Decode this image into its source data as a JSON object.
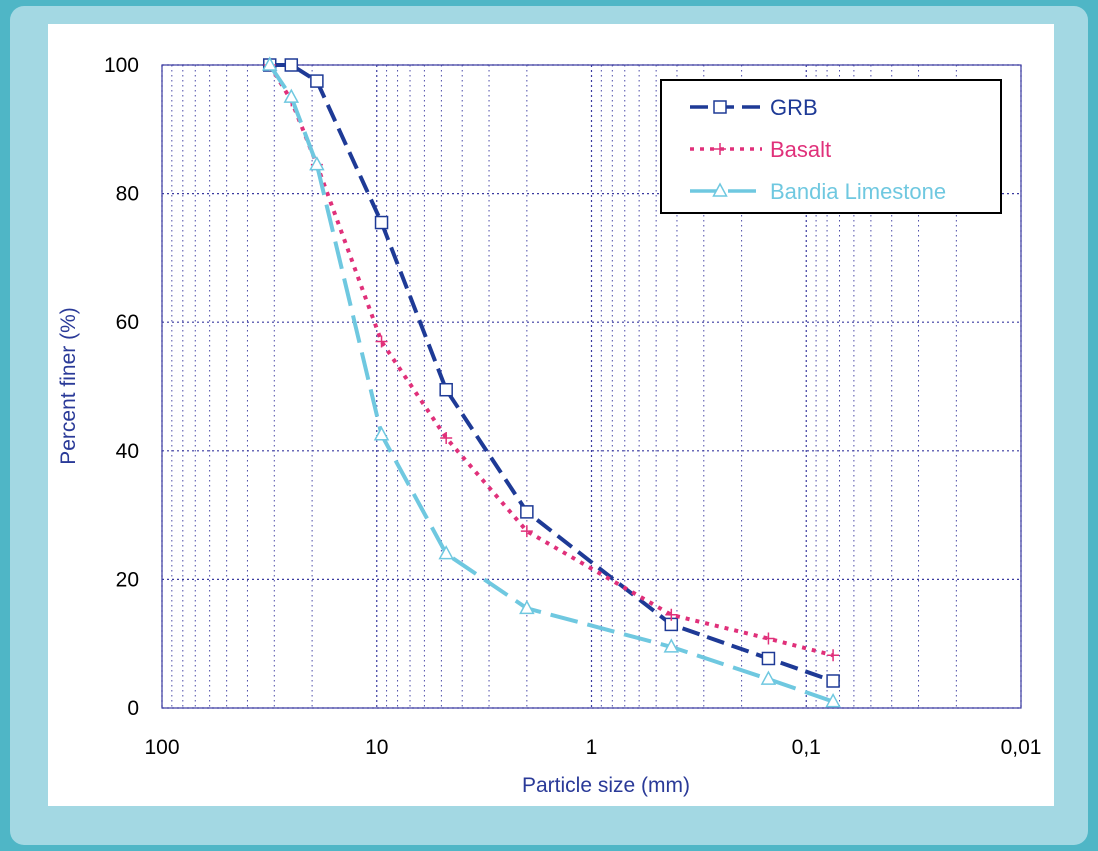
{
  "chart_data": {
    "type": "line",
    "title": "",
    "xlabel": "Particle size (mm)",
    "ylabel": "Percent finer (%)",
    "x_scale": "log",
    "x_reversed": true,
    "xlim": [
      100,
      0.01
    ],
    "ylim": [
      0,
      100
    ],
    "x_ticks": [
      {
        "value": 100,
        "label": "100"
      },
      {
        "value": 10,
        "label": "10"
      },
      {
        "value": 1,
        "label": "1"
      },
      {
        "value": 0.1,
        "label": "0,1"
      },
      {
        "value": 0.01,
        "label": "0,01"
      }
    ],
    "y_ticks": [
      {
        "value": 0,
        "label": "0"
      },
      {
        "value": 20,
        "label": "20"
      },
      {
        "value": 40,
        "label": "40"
      },
      {
        "value": 60,
        "label": "60"
      },
      {
        "value": 80,
        "label": "80"
      },
      {
        "value": 100,
        "label": "100"
      }
    ],
    "grid": true,
    "legend_position": "top-right",
    "series": [
      {
        "name": "GRB",
        "color": "#1e3a96",
        "marker": "square",
        "points": [
          [
            31.5,
            100
          ],
          [
            25,
            100
          ],
          [
            19,
            97.5
          ],
          [
            9.5,
            75.5
          ],
          [
            4.75,
            49.5
          ],
          [
            2,
            30.5
          ],
          [
            0.425,
            13
          ],
          [
            0.15,
            7.7
          ],
          [
            0.075,
            4.2
          ]
        ]
      },
      {
        "name": "Basalt",
        "color": "#e0307a",
        "marker": "plus",
        "points": [
          [
            31.5,
            100
          ],
          [
            25,
            94.5
          ],
          [
            19,
            84.5
          ],
          [
            9.5,
            57
          ],
          [
            4.75,
            42
          ],
          [
            2,
            27.5
          ],
          [
            0.425,
            14.5
          ],
          [
            0.15,
            10.8
          ],
          [
            0.075,
            8.2
          ]
        ]
      },
      {
        "name": "Bandia Limestone",
        "color": "#6fc8e0",
        "marker": "triangle",
        "points": [
          [
            31.5,
            100
          ],
          [
            25,
            95
          ],
          [
            19,
            84.5
          ],
          [
            9.5,
            42.5
          ],
          [
            4.75,
            24
          ],
          [
            2,
            15.5
          ],
          [
            0.425,
            9.5
          ],
          [
            0.15,
            4.5
          ],
          [
            0.075,
            1
          ]
        ]
      }
    ]
  }
}
